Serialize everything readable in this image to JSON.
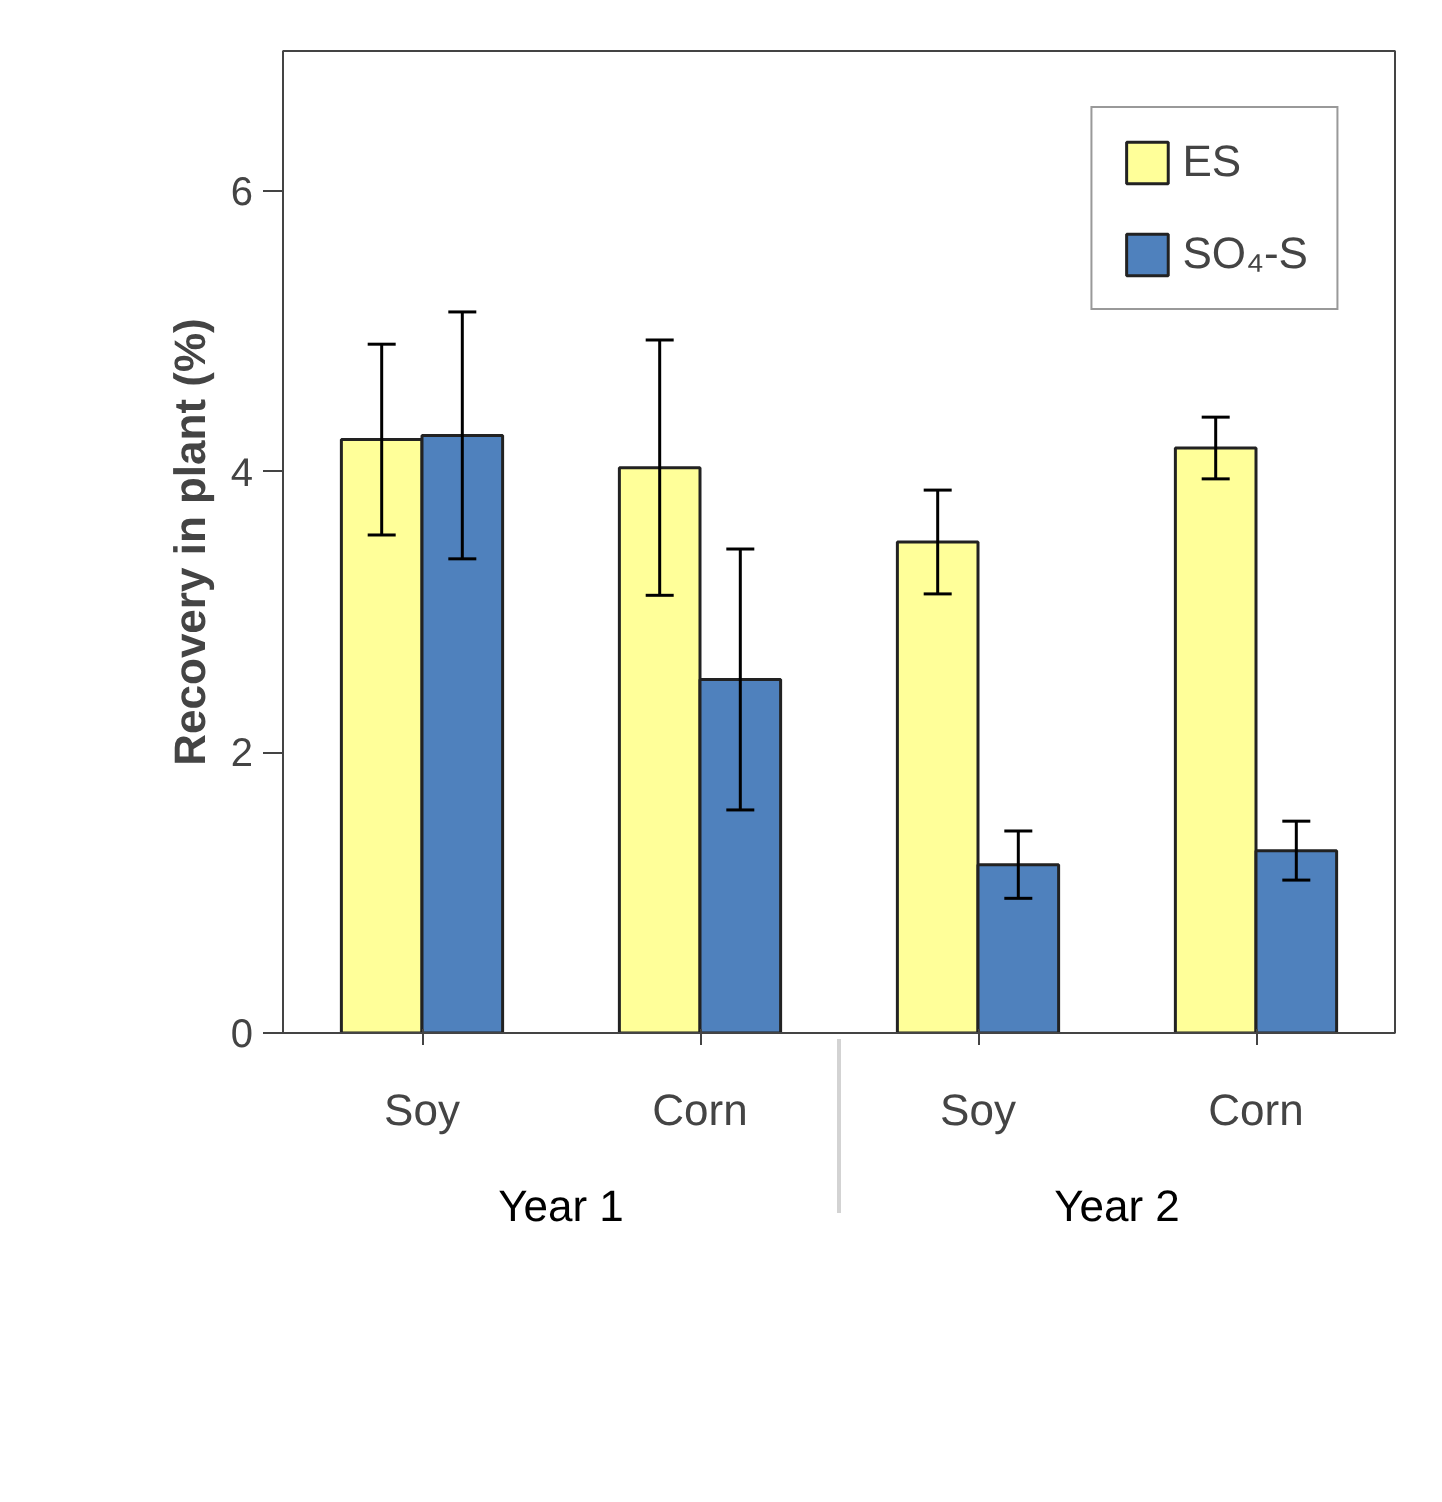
{
  "chart_data": {
    "type": "bar",
    "ylabel": "Recovery in plant (%)",
    "categories": [
      "Soy",
      "Corn",
      "Soy",
      "Corn"
    ],
    "annotations": [
      "Year 1",
      "Year 2"
    ],
    "series": [
      {
        "name": "ES",
        "color": "#ffff99",
        "values": [
          4.23,
          4.03,
          3.5,
          4.17
        ],
        "errors": [
          0.68,
          0.91,
          0.37,
          0.22
        ]
      },
      {
        "name": "SO₄-S",
        "color": "#4f81bd",
        "values": [
          4.26,
          2.52,
          1.2,
          1.3
        ],
        "errors": [
          0.88,
          0.93,
          0.24,
          0.21
        ]
      }
    ],
    "ylim": [
      0,
      7
    ],
    "yticks": [
      0,
      2,
      4,
      6
    ],
    "grid": false,
    "legend": "top right"
  }
}
